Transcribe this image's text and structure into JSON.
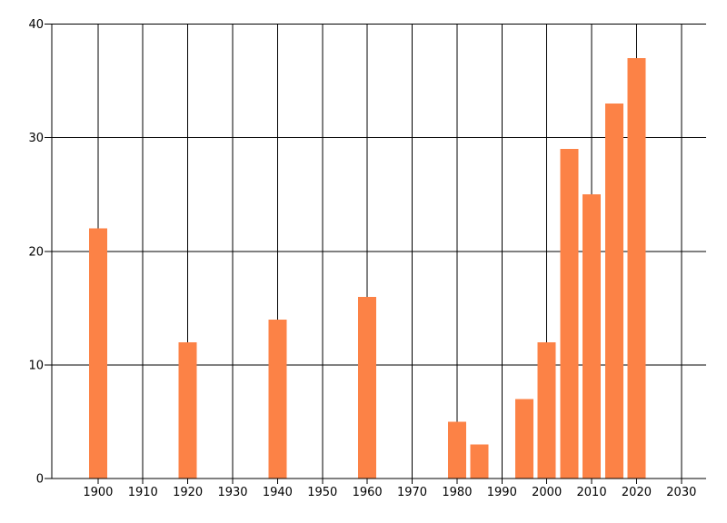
{
  "chart_data": {
    "type": "bar",
    "title": "",
    "xlabel": "",
    "ylabel": "",
    "x": [
      1900,
      1920,
      1940,
      1960,
      1980,
      1985,
      1995,
      2000,
      2005,
      2010,
      2015,
      2020
    ],
    "values": [
      22,
      12,
      14,
      16,
      5,
      3,
      7,
      12,
      29,
      25,
      33,
      37
    ],
    "x_ticks": [
      1900,
      1910,
      1920,
      1930,
      1940,
      1950,
      1960,
      1970,
      1980,
      1990,
      2000,
      2010,
      2020,
      2030
    ],
    "y_ticks": [
      0,
      10,
      20,
      30,
      40
    ],
    "xlim": [
      1889.7,
      2035.5
    ],
    "ylim": [
      0,
      40
    ],
    "grid": true,
    "legend": false,
    "bar_color": "#FC8246",
    "line_color": "#000000",
    "text_color": "#000000",
    "background_color": "#FFFFFF"
  }
}
